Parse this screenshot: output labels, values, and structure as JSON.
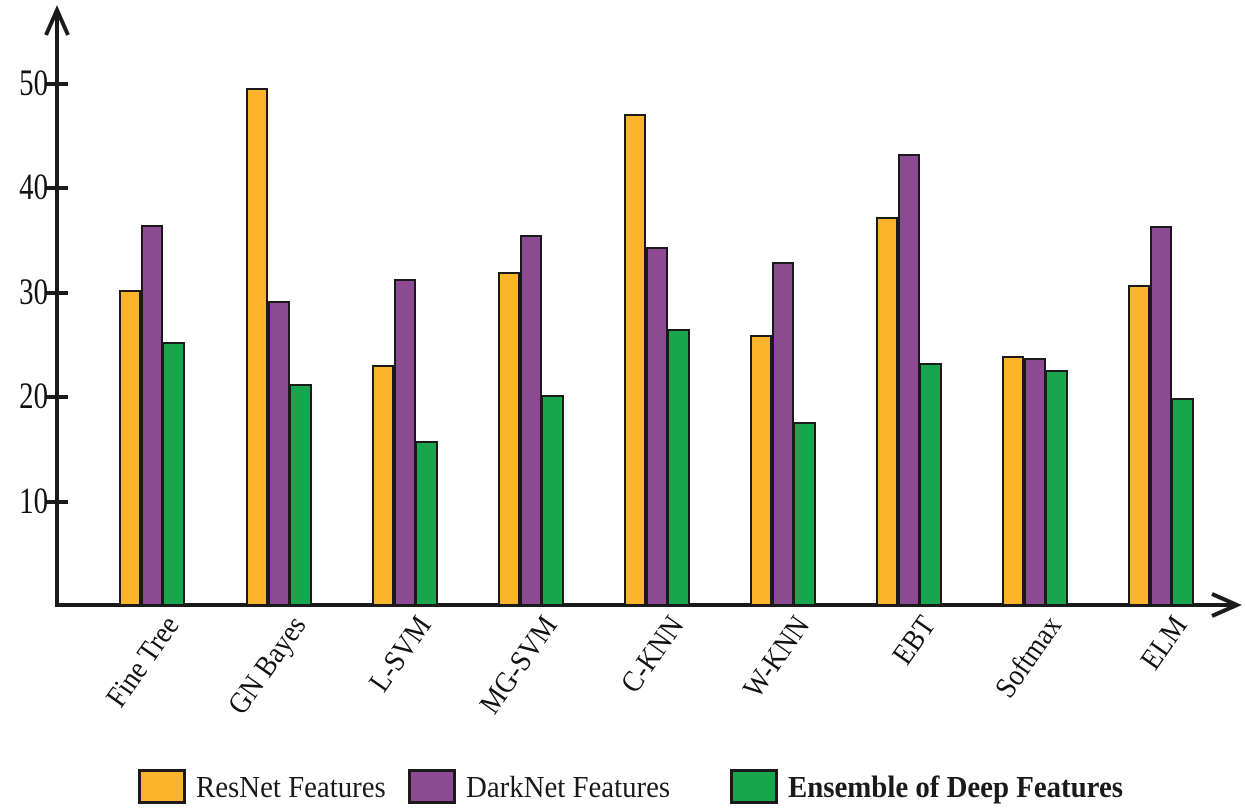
{
  "chart_data": {
    "type": "bar",
    "grouped": true,
    "title": "",
    "xlabel": "",
    "ylabel": "",
    "categories": [
      "Fine Tree",
      "GN Bayes",
      "L-SVM",
      "MG-SVM",
      "C-KNN",
      "W-KNN",
      "EBT",
      "Softmax",
      "ELM"
    ],
    "series": [
      {
        "name": "ResNet Features",
        "color": "#FBB42B",
        "values": [
          30.2,
          49.6,
          23.1,
          32.0,
          47.1,
          25.9,
          37.2,
          23.9,
          30.7
        ]
      },
      {
        "name": "DarkNet Features",
        "color": "#8B4A91",
        "values": [
          36.5,
          29.2,
          31.3,
          35.5,
          34.4,
          32.9,
          43.3,
          23.7,
          36.4
        ]
      },
      {
        "name": "Ensemble of Deep Features",
        "color": "#17A54E",
        "emphasis": true,
        "values": [
          25.3,
          21.2,
          15.8,
          20.2,
          26.5,
          17.6,
          23.3,
          22.6,
          19.9
        ]
      }
    ],
    "y_ticks": [
      10,
      20,
      30,
      40,
      50
    ],
    "ylim": [
      0,
      57
    ],
    "grid": false,
    "legend_position": "bottom",
    "axis_color": "#1A1A1A",
    "bar_outline": "#1A1A1A"
  }
}
